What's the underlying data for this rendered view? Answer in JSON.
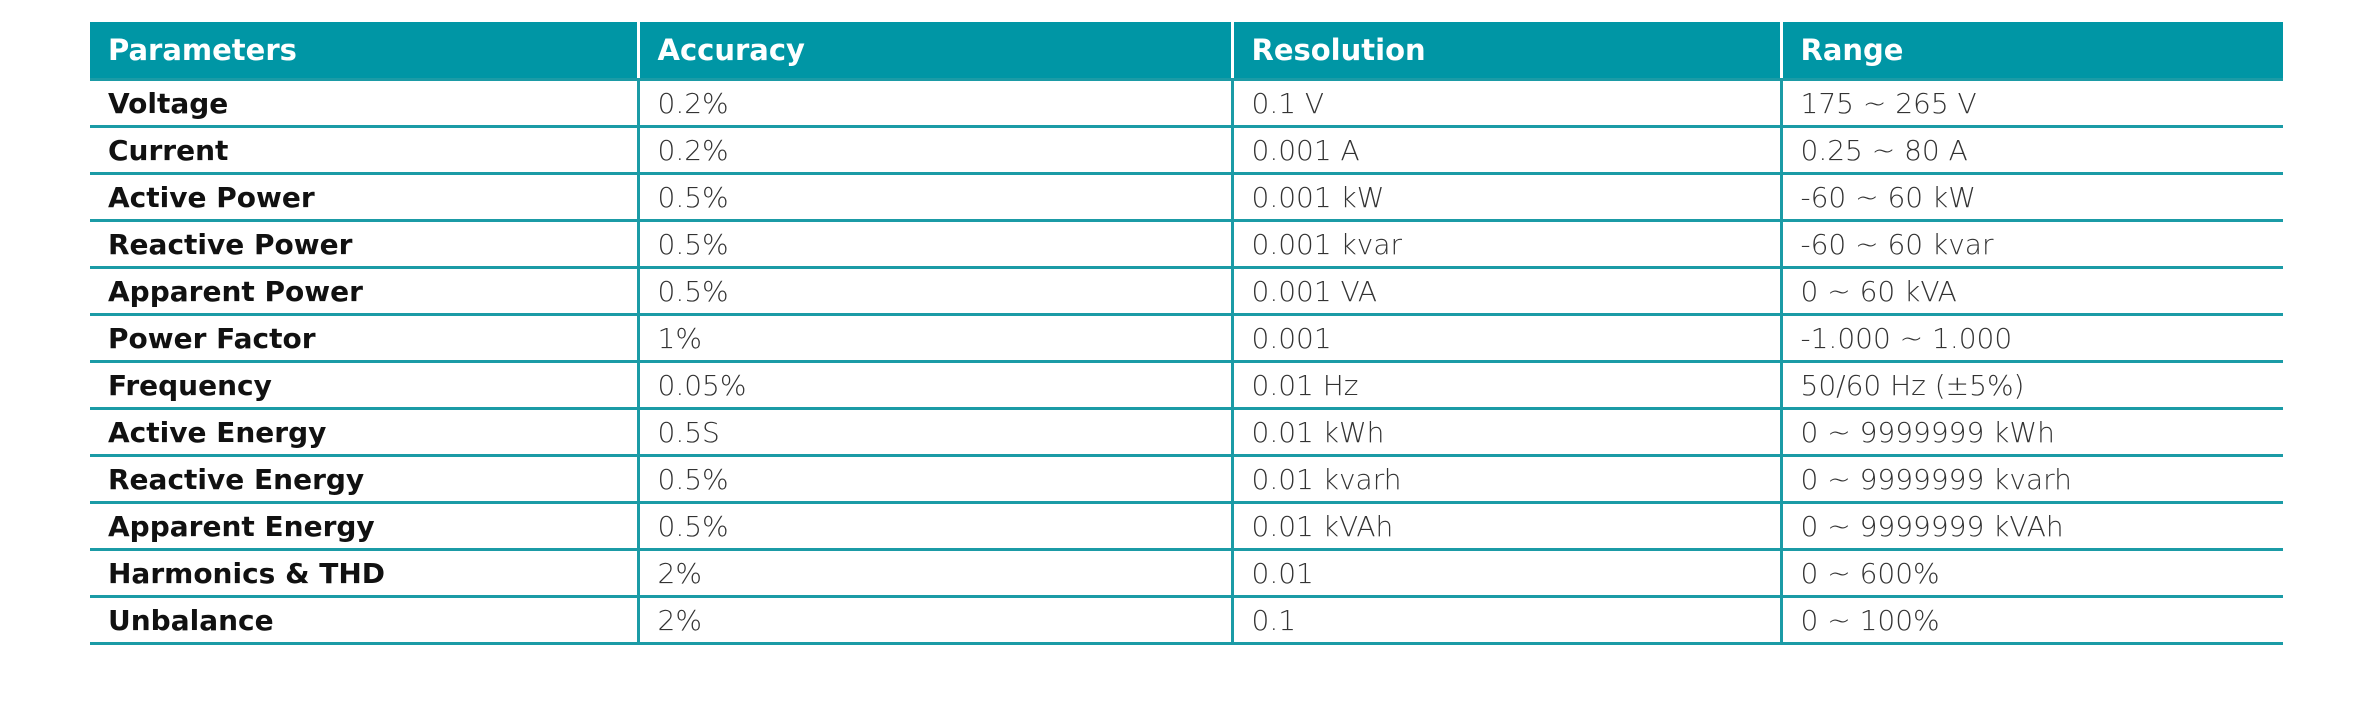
{
  "table": {
    "header": [
      "Parameters",
      "Accuracy",
      "Resolution",
      "Range"
    ],
    "rows": [
      [
        "Voltage",
        "0.2%",
        "0.1 V",
        "175 ~ 265 V"
      ],
      [
        "Current",
        "0.2%",
        "0.001 A",
        "0.25 ~ 80 A"
      ],
      [
        "Active Power",
        "0.5%",
        "0.001 kW",
        "-60 ~ 60 kW"
      ],
      [
        "Reactive Power",
        "0.5%",
        "0.001 kvar",
        "-60 ~ 60 kvar"
      ],
      [
        "Apparent Power",
        "0.5%",
        "0.001 VA",
        "0 ~ 60 kVA"
      ],
      [
        "Power Factor",
        "1%",
        "0.001",
        "-1.000 ~ 1.000"
      ],
      [
        "Frequency",
        "0.05%",
        "0.01 Hz",
        "50/60 Hz (±5%)"
      ],
      [
        "Active Energy",
        "0.5S",
        "0.01 kWh",
        "0 ~ 9999999 kWh"
      ],
      [
        "Reactive Energy",
        "0.5%",
        "0.01 kvarh",
        "0 ~ 9999999 kvarh"
      ],
      [
        "Apparent Energy",
        "0.5%",
        "0.01 kVAh",
        "0 ~ 9999999 kVAh"
      ],
      [
        "Harmonics & THD",
        "2%",
        "0.01",
        "0 ~ 600%"
      ],
      [
        "Unbalance",
        "2%",
        "0.1",
        "0 ~ 100%"
      ]
    ]
  }
}
